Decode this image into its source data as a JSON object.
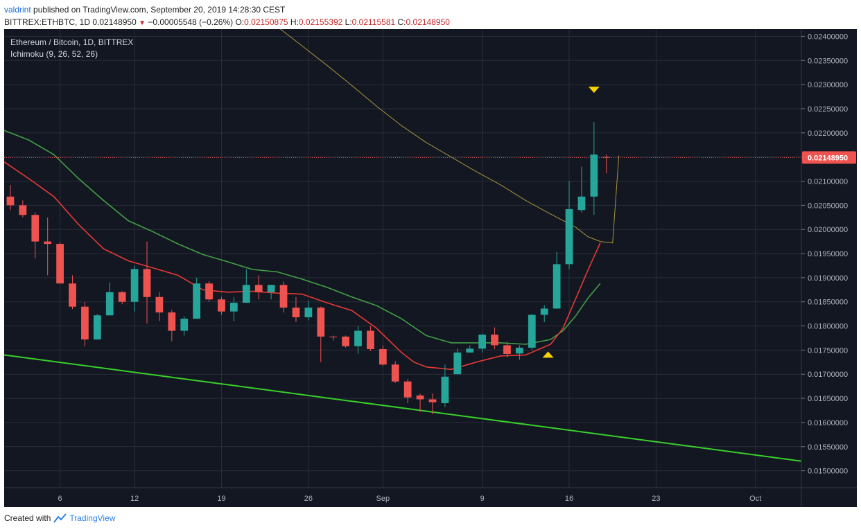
{
  "header": {
    "user": "valdrint",
    "published_text": "published on TradingView.com, September 20, 2019 14:28:30 CEST",
    "symbol": "BITTREX:ETHBTC, 1D",
    "last": "0.02148950",
    "change": "−0.00005548 (−0.26%)",
    "o_label": "O:",
    "o_value": "0.02150875",
    "h_label": "H:",
    "h_value": "0.02155392",
    "l_label": "L:",
    "l_value": "0.02115581",
    "c_label": "C:",
    "c_value": "0.02148950"
  },
  "legend": {
    "line1": "Ethereum / Bitcoin, 1D, BITTREX",
    "line2": "Ichimoku (9, 26, 52, 26)"
  },
  "footer": {
    "created_with": "Created with",
    "brand": "TradingView"
  },
  "colors": {
    "background": "#131722",
    "grid": "#2a2e39",
    "bull": "#26a69a",
    "bear": "#ef5350",
    "conversion": "#e53935",
    "base": "#43a047",
    "lagging": "#a8943f",
    "trend": "#39d12a",
    "marker": "#f5d400",
    "price_label": "#ef5350"
  },
  "chart_data": {
    "type": "candlestick",
    "y_axis_position": "right",
    "ylim": [
      0.01465,
      0.02415
    ],
    "y_ticks": [
      "0.02400000",
      "0.02350000",
      "0.02300000",
      "0.02250000",
      "0.02200000",
      "0.02150000",
      "0.02100000",
      "0.02050000",
      "0.02000000",
      "0.01950000",
      "0.01900000",
      "0.01850000",
      "0.01800000",
      "0.01750000",
      "0.01700000",
      "0.01650000",
      "0.01600000",
      "0.01550000",
      "0.01500000"
    ],
    "x_ticks": [
      {
        "label": "6",
        "index": 4
      },
      {
        "label": "12",
        "index": 10
      },
      {
        "label": "19",
        "index": 17
      },
      {
        "label": "26",
        "index": 24
      },
      {
        "label": "Sep",
        "index": 30
      },
      {
        "label": "9",
        "index": 38
      },
      {
        "label": "16",
        "index": 45
      },
      {
        "label": "23",
        "index": 52
      },
      {
        "label": "Oct",
        "index": 60
      }
    ],
    "x_range": [
      -0.5,
      63.7
    ],
    "current_price": 0.0214895,
    "current_price_label": "0.02148950",
    "candles": [
      {
        "o": 0.02068,
        "h": 0.02092,
        "l": 0.0204,
        "c": 0.0205
      },
      {
        "o": 0.0205,
        "h": 0.0206,
        "l": 0.02025,
        "c": 0.0203
      },
      {
        "o": 0.0203,
        "h": 0.02035,
        "l": 0.0194,
        "c": 0.01975
      },
      {
        "o": 0.01975,
        "h": 0.02025,
        "l": 0.01905,
        "c": 0.0197
      },
      {
        "o": 0.0197,
        "h": 0.01973,
        "l": 0.0189,
        "c": 0.01888
      },
      {
        "o": 0.01888,
        "h": 0.01905,
        "l": 0.01835,
        "c": 0.0184
      },
      {
        "o": 0.0184,
        "h": 0.0185,
        "l": 0.01758,
        "c": 0.01772
      },
      {
        "o": 0.01772,
        "h": 0.01825,
        "l": 0.01772,
        "c": 0.01822
      },
      {
        "o": 0.01822,
        "h": 0.0189,
        "l": 0.01822,
        "c": 0.0187
      },
      {
        "o": 0.0187,
        "h": 0.01872,
        "l": 0.01845,
        "c": 0.0185
      },
      {
        "o": 0.0185,
        "h": 0.01925,
        "l": 0.0183,
        "c": 0.01918
      },
      {
        "o": 0.01918,
        "h": 0.01975,
        "l": 0.01805,
        "c": 0.0186
      },
      {
        "o": 0.0186,
        "h": 0.0187,
        "l": 0.0181,
        "c": 0.01828
      },
      {
        "o": 0.01828,
        "h": 0.01833,
        "l": 0.01768,
        "c": 0.0179
      },
      {
        "o": 0.0179,
        "h": 0.0182,
        "l": 0.0178,
        "c": 0.01815
      },
      {
        "o": 0.01815,
        "h": 0.019,
        "l": 0.01815,
        "c": 0.01888
      },
      {
        "o": 0.01888,
        "h": 0.01893,
        "l": 0.0185,
        "c": 0.01855
      },
      {
        "o": 0.01855,
        "h": 0.0186,
        "l": 0.01823,
        "c": 0.0183
      },
      {
        "o": 0.0183,
        "h": 0.0186,
        "l": 0.0181,
        "c": 0.01848
      },
      {
        "o": 0.01848,
        "h": 0.01918,
        "l": 0.01848,
        "c": 0.01885
      },
      {
        "o": 0.01885,
        "h": 0.01905,
        "l": 0.01855,
        "c": 0.0187
      },
      {
        "o": 0.0187,
        "h": 0.01885,
        "l": 0.01855,
        "c": 0.01885
      },
      {
        "o": 0.01885,
        "h": 0.01892,
        "l": 0.01828,
        "c": 0.01838
      },
      {
        "o": 0.01838,
        "h": 0.0186,
        "l": 0.01808,
        "c": 0.01818
      },
      {
        "o": 0.01818,
        "h": 0.01852,
        "l": 0.01812,
        "c": 0.01838
      },
      {
        "o": 0.01838,
        "h": 0.0184,
        "l": 0.01725,
        "c": 0.01778
      },
      {
        "o": 0.01778,
        "h": 0.0178,
        "l": 0.0177,
        "c": 0.01777
      },
      {
        "o": 0.01778,
        "h": 0.0178,
        "l": 0.01755,
        "c": 0.01758
      },
      {
        "o": 0.01758,
        "h": 0.018,
        "l": 0.01742,
        "c": 0.0179
      },
      {
        "o": 0.0179,
        "h": 0.018,
        "l": 0.01748,
        "c": 0.01752
      },
      {
        "o": 0.01752,
        "h": 0.0176,
        "l": 0.01717,
        "c": 0.0172
      },
      {
        "o": 0.0172,
        "h": 0.01727,
        "l": 0.01682,
        "c": 0.01685
      },
      {
        "o": 0.01685,
        "h": 0.0169,
        "l": 0.0164,
        "c": 0.01652
      },
      {
        "o": 0.01656,
        "h": 0.0166,
        "l": 0.01622,
        "c": 0.01648
      },
      {
        "o": 0.01648,
        "h": 0.0166,
        "l": 0.01617,
        "c": 0.01642
      },
      {
        "o": 0.0164,
        "h": 0.0172,
        "l": 0.01632,
        "c": 0.01695
      },
      {
        "o": 0.017,
        "h": 0.01753,
        "l": 0.017,
        "c": 0.01745
      },
      {
        "o": 0.01745,
        "h": 0.0176,
        "l": 0.01745,
        "c": 0.01753
      },
      {
        "o": 0.01753,
        "h": 0.01784,
        "l": 0.01745,
        "c": 0.01782
      },
      {
        "o": 0.01782,
        "h": 0.01797,
        "l": 0.01752,
        "c": 0.0176
      },
      {
        "o": 0.0176,
        "h": 0.01767,
        "l": 0.01735,
        "c": 0.01742
      },
      {
        "o": 0.01743,
        "h": 0.0176,
        "l": 0.0173,
        "c": 0.01755
      },
      {
        "o": 0.01755,
        "h": 0.01825,
        "l": 0.0175,
        "c": 0.01823
      },
      {
        "o": 0.01823,
        "h": 0.01843,
        "l": 0.01808,
        "c": 0.01836
      },
      {
        "o": 0.01836,
        "h": 0.01953,
        "l": 0.01836,
        "c": 0.01928
      },
      {
        "o": 0.01928,
        "h": 0.021,
        "l": 0.01918,
        "c": 0.02042
      },
      {
        "o": 0.0204,
        "h": 0.0213,
        "l": 0.02035,
        "c": 0.02068
      },
      {
        "o": 0.02068,
        "h": 0.02222,
        "l": 0.0203,
        "c": 0.02155
      },
      {
        "o": 0.0215,
        "h": 0.02155,
        "l": 0.02116,
        "c": 0.02149
      }
    ],
    "conversion_line": [
      [
        -0.5,
        0.0214
      ],
      [
        1.5,
        0.02105
      ],
      [
        3.5,
        0.02068
      ],
      [
        5.5,
        0.0201
      ],
      [
        7.5,
        0.0196
      ],
      [
        9.5,
        0.01935
      ],
      [
        11.5,
        0.0192
      ],
      [
        13.5,
        0.01905
      ],
      [
        15.5,
        0.01875
      ],
      [
        17.5,
        0.0187
      ],
      [
        19.5,
        0.01872
      ],
      [
        21.5,
        0.01868
      ],
      [
        23.5,
        0.01866
      ],
      [
        25.5,
        0.01848
      ],
      [
        27.5,
        0.01832
      ],
      [
        29.5,
        0.01795
      ],
      [
        30.5,
        0.0177
      ],
      [
        31.5,
        0.01745
      ],
      [
        32.5,
        0.01725
      ],
      [
        33.5,
        0.01715
      ],
      [
        35.5,
        0.0171
      ],
      [
        37.5,
        0.01725
      ],
      [
        39.5,
        0.01738
      ],
      [
        41.5,
        0.0174
      ],
      [
        43.5,
        0.01762
      ],
      [
        44.5,
        0.01795
      ],
      [
        45.5,
        0.01855
      ],
      [
        46.5,
        0.01915
      ],
      [
        47.5,
        0.01972
      ]
    ],
    "base_line": [
      [
        -0.5,
        0.02205
      ],
      [
        1.5,
        0.02185
      ],
      [
        3.5,
        0.02155
      ],
      [
        5.5,
        0.02105
      ],
      [
        7.5,
        0.0206
      ],
      [
        9.5,
        0.02018
      ],
      [
        11.5,
        0.01995
      ],
      [
        13.5,
        0.0197
      ],
      [
        15.5,
        0.01948
      ],
      [
        17.5,
        0.01933
      ],
      [
        19.5,
        0.01917
      ],
      [
        21.5,
        0.01912
      ],
      [
        23.5,
        0.01897
      ],
      [
        25.5,
        0.0188
      ],
      [
        27.5,
        0.0186
      ],
      [
        29.5,
        0.01842
      ],
      [
        31.5,
        0.01815
      ],
      [
        33.5,
        0.0178
      ],
      [
        35.5,
        0.01765
      ],
      [
        37.5,
        0.01765
      ],
      [
        39.5,
        0.01765
      ],
      [
        41.5,
        0.01762
      ],
      [
        43.5,
        0.01772
      ],
      [
        44.5,
        0.0179
      ],
      [
        45.5,
        0.0182
      ],
      [
        46.5,
        0.01857
      ],
      [
        47.5,
        0.01888
      ]
    ],
    "lagging_line": [
      [
        19.5,
        0.0246
      ],
      [
        21.5,
        0.0242
      ],
      [
        23.5,
        0.0238
      ],
      [
        25.5,
        0.0234
      ],
      [
        27.5,
        0.02298
      ],
      [
        29.5,
        0.02255
      ],
      [
        31.5,
        0.02215
      ],
      [
        33.5,
        0.0218
      ],
      [
        35.5,
        0.0215
      ],
      [
        37.5,
        0.0212
      ],
      [
        39.5,
        0.02092
      ],
      [
        41.5,
        0.0206
      ],
      [
        43.5,
        0.02032
      ],
      [
        45.5,
        0.02005
      ],
      [
        46.5,
        0.01985
      ],
      [
        47.5,
        0.01975
      ],
      [
        48.5,
        0.01972
      ],
      [
        49.0,
        0.02153
      ]
    ],
    "trend_line": [
      [
        -0.5,
        0.0174
      ],
      [
        63.7,
        0.0152
      ]
    ],
    "markers": [
      {
        "index": 47,
        "price": 0.0229,
        "direction": "down"
      },
      {
        "index": 43.3,
        "price": 0.0174,
        "direction": "up"
      }
    ]
  }
}
